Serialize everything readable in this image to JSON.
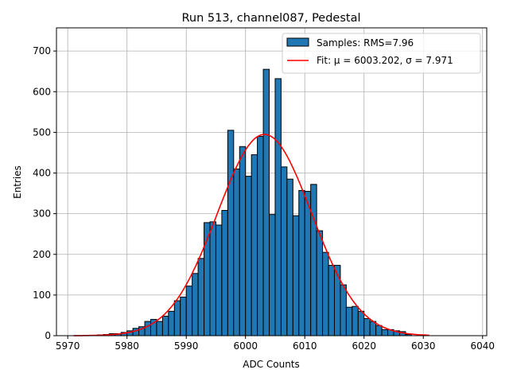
{
  "chart_data": {
    "type": "bar",
    "title": "Run 513, channel087, Pedestal",
    "xlabel": "ADC Counts",
    "ylabel": "Entries",
    "xlim": [
      5968.1,
      6040.7
    ],
    "ylim": [
      0,
      757
    ],
    "xticks": [
      5970,
      5980,
      5990,
      6000,
      6010,
      6020,
      6030,
      6040
    ],
    "yticks": [
      0,
      100,
      200,
      300,
      400,
      500,
      600,
      700
    ],
    "grid": true,
    "legend_position": "top-right",
    "bin_width": 1,
    "bin_left_edges": [
      5975,
      5976,
      5977,
      5978,
      5979,
      5980,
      5981,
      5982,
      5983,
      5984,
      5985,
      5986,
      5987,
      5988,
      5989,
      5990,
      5991,
      5992,
      5993,
      5994,
      5995,
      5996,
      5997,
      5998,
      5999,
      6000,
      6001,
      6002,
      6003,
      6004,
      6005,
      6006,
      6007,
      6008,
      6009,
      6010,
      6011,
      6012,
      6013,
      6014,
      6015,
      6016,
      6017,
      6018,
      6019,
      6020,
      6021,
      6022,
      6023,
      6024,
      6025,
      6026,
      6027
    ],
    "values": [
      2,
      3,
      5,
      5,
      8,
      12,
      18,
      22,
      35,
      40,
      35,
      48,
      60,
      86,
      95,
      122,
      153,
      190,
      278,
      280,
      272,
      308,
      505,
      410,
      465,
      392,
      445,
      490,
      655,
      298,
      632,
      415,
      385,
      295,
      357,
      355,
      372,
      258,
      205,
      173,
      173,
      125,
      70,
      72,
      60,
      42,
      35,
      25,
      15,
      15,
      12,
      10,
      3
    ],
    "series": [
      {
        "name": "Samples: RMS=7.96",
        "type": "histogram",
        "color": "#1f77b4",
        "edgecolor": "#000000"
      },
      {
        "name": "Fit: μ = 6003.202, σ = 7.971",
        "type": "line",
        "color": "#ff0000",
        "mu": 6003.202,
        "sigma": 7.971,
        "amplitude": 495,
        "x_range": [
          5971,
          6031
        ]
      }
    ]
  }
}
